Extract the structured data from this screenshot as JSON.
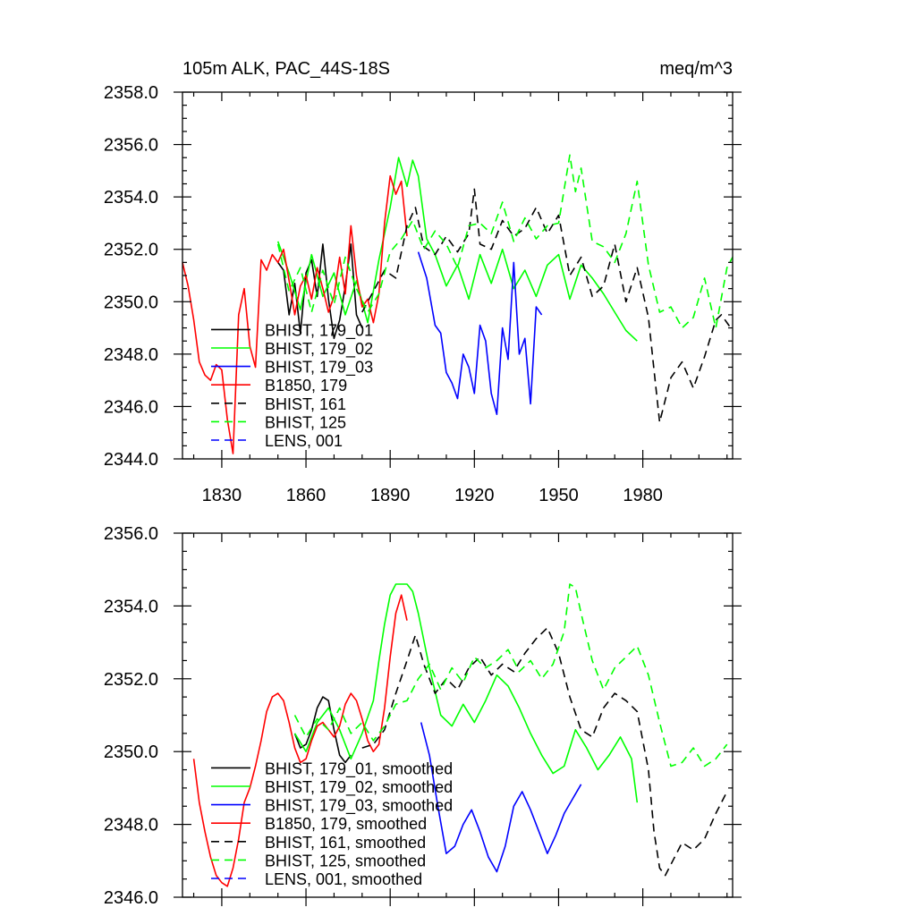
{
  "colors": {
    "black": "#000000",
    "green": "#00ff00",
    "blue": "#0000ff",
    "red": "#ff0000"
  },
  "chart_data": [
    {
      "type": "line",
      "title": "105m ALK, PAC_44S-18S",
      "units": "meq/m^3",
      "xlabel": "",
      "ylabel": "",
      "xlim": [
        1816,
        2012
      ],
      "ylim": [
        2344.0,
        2358.0
      ],
      "xticks": [
        1830,
        1860,
        1890,
        1920,
        1950,
        1980
      ],
      "yticks": [
        2344.0,
        2346.0,
        2348.0,
        2350.0,
        2352.0,
        2354.0,
        2356.0,
        2358.0
      ],
      "ytick_labels": [
        "2344.0",
        "2346.0",
        "2348.0",
        "2350.0",
        "2352.0",
        "2354.0",
        "2356.0",
        "2358.0"
      ],
      "legend_position": "bottom-left",
      "series": [
        {
          "name": "BHIST, 179_01",
          "color": "black",
          "dash": false,
          "x": [
            1850,
            1852,
            1854,
            1856,
            1858,
            1860,
            1862,
            1864,
            1866,
            1868,
            1870,
            1872,
            1874,
            1876,
            1878,
            1880
          ],
          "y": [
            2351.5,
            2351.2,
            2349.5,
            2350.7,
            2348.8,
            2351.1,
            2351.6,
            2350.2,
            2352.2,
            2350.1,
            2348.6,
            2349.3,
            2350.6,
            2352.2,
            2349.5,
            2349.0
          ]
        },
        {
          "name": "BHIST, 179_02",
          "color": "green",
          "dash": false,
          "x": [
            1850,
            1854,
            1858,
            1862,
            1866,
            1870,
            1874,
            1878,
            1882,
            1886,
            1890,
            1893,
            1896,
            1898,
            1900,
            1903,
            1906,
            1910,
            1914,
            1918,
            1922,
            1926,
            1930,
            1934,
            1938,
            1942,
            1946,
            1950,
            1954,
            1958,
            1962,
            1966,
            1970,
            1974,
            1978
          ],
          "y": [
            2352.3,
            2351.1,
            2349.7,
            2351.8,
            2350.2,
            2351.1,
            2349.5,
            2350.8,
            2349.2,
            2351.6,
            2353.6,
            2355.5,
            2354.4,
            2355.4,
            2354.8,
            2352.4,
            2351.8,
            2350.6,
            2351.4,
            2350.1,
            2351.8,
            2350.7,
            2352.0,
            2350.5,
            2351.2,
            2350.2,
            2351.4,
            2351.8,
            2350.1,
            2351.4,
            2350.9,
            2350.3,
            2349.6,
            2348.9,
            2348.5
          ]
        },
        {
          "name": "BHIST, 179_03",
          "color": "blue",
          "dash": false,
          "x": [
            1900,
            1903,
            1906,
            1908,
            1910,
            1912,
            1914,
            1916,
            1918,
            1920,
            1922,
            1924,
            1926,
            1928,
            1930,
            1932,
            1934,
            1936,
            1938,
            1940,
            1942,
            1944
          ],
          "y": [
            2351.9,
            2350.9,
            2349.1,
            2348.8,
            2347.3,
            2346.9,
            2346.3,
            2348.0,
            2347.5,
            2346.5,
            2349.1,
            2348.5,
            2346.5,
            2345.7,
            2349.0,
            2347.8,
            2351.5,
            2348.0,
            2348.6,
            2346.1,
            2349.8,
            2349.5
          ]
        },
        {
          "name": "B1850, 179",
          "color": "red",
          "dash": false,
          "x": [
            1816,
            1818,
            1820,
            1822,
            1824,
            1826,
            1828,
            1830,
            1832,
            1834,
            1836,
            1838,
            1840,
            1842,
            1844,
            1846,
            1848,
            1850,
            1852,
            1854,
            1856,
            1858,
            1860,
            1862,
            1864,
            1866,
            1868,
            1870,
            1872,
            1874,
            1876,
            1878,
            1880,
            1882,
            1884,
            1886,
            1888,
            1890,
            1892,
            1894,
            1896
          ],
          "y": [
            2351.5,
            2350.6,
            2349.3,
            2347.7,
            2347.2,
            2347.0,
            2347.6,
            2347.4,
            2345.5,
            2344.2,
            2349.5,
            2350.5,
            2348.3,
            2347.5,
            2351.6,
            2351.2,
            2351.8,
            2351.5,
            2352.0,
            2350.8,
            2349.5,
            2350.6,
            2351.0,
            2350.1,
            2351.3,
            2350.5,
            2349.6,
            2350.2,
            2351.7,
            2350.3,
            2352.9,
            2351.0,
            2349.8,
            2350.1,
            2349.2,
            2350.3,
            2353.0,
            2354.8,
            2354.1,
            2354.6,
            2352.5
          ]
        },
        {
          "name": "BHIST, 161",
          "color": "black",
          "dash": true,
          "x": [
            1880,
            1884,
            1888,
            1892,
            1896,
            1899,
            1902,
            1906,
            1910,
            1914,
            1918,
            1920,
            1922,
            1926,
            1930,
            1934,
            1938,
            1942,
            1946,
            1950,
            1954,
            1958,
            1962,
            1966,
            1970,
            1974,
            1978,
            1982,
            1984,
            1986,
            1990,
            1994,
            1998,
            2002,
            2006,
            2008,
            2012
          ],
          "y": [
            2349.6,
            2350.4,
            2351.2,
            2350.9,
            2352.9,
            2353.6,
            2352.1,
            2351.8,
            2352.5,
            2351.9,
            2352.6,
            2354.3,
            2352.2,
            2352.0,
            2353.1,
            2352.5,
            2352.8,
            2353.6,
            2352.6,
            2353.3,
            2351.0,
            2351.7,
            2350.2,
            2350.6,
            2352.2,
            2350.0,
            2351.3,
            2349.4,
            2347.4,
            2345.4,
            2347.1,
            2347.7,
            2346.7,
            2347.9,
            2349.3,
            2349.5,
            2348.9
          ]
        },
        {
          "name": "BHIST, 125",
          "color": "green",
          "dash": true,
          "x": [
            1850,
            1854,
            1858,
            1862,
            1866,
            1870,
            1874,
            1878,
            1882,
            1886,
            1890,
            1894,
            1898,
            1902,
            1906,
            1910,
            1914,
            1918,
            1922,
            1926,
            1930,
            1934,
            1938,
            1942,
            1946,
            1950,
            1954,
            1956,
            1958,
            1962,
            1966,
            1970,
            1974,
            1978,
            1982,
            1986,
            1990,
            1994,
            1998,
            2002,
            2006,
            2010,
            2012
          ],
          "y": [
            2352.2,
            2350.4,
            2351.3,
            2349.6,
            2351.2,
            2349.9,
            2351.7,
            2350.5,
            2349.6,
            2350.3,
            2351.9,
            2352.4,
            2353.1,
            2352.0,
            2352.7,
            2352.2,
            2351.3,
            2352.9,
            2353.0,
            2352.6,
            2353.8,
            2352.3,
            2353.2,
            2352.4,
            2352.9,
            2353.0,
            2355.6,
            2354.2,
            2355.1,
            2352.3,
            2352.1,
            2351.5,
            2352.6,
            2354.6,
            2351.4,
            2349.6,
            2349.8,
            2349.0,
            2349.4,
            2350.9,
            2349.0,
            2351.3,
            2351.7
          ]
        },
        {
          "name": "LENS, 001",
          "color": "blue",
          "dash": true,
          "x": [],
          "y": []
        }
      ]
    },
    {
      "type": "line",
      "title": "",
      "xlabel": "",
      "ylabel": "",
      "xlim": [
        1816,
        2012
      ],
      "ylim": [
        2346.0,
        2356.0
      ],
      "xticks": [
        1830,
        1860,
        1890,
        1920,
        1950,
        1980
      ],
      "yticks": [
        2346.0,
        2348.0,
        2350.0,
        2352.0,
        2354.0,
        2356.0
      ],
      "ytick_labels": [
        "2346.0",
        "2348.0",
        "2350.0",
        "2352.0",
        "2354.0",
        "2356.0"
      ],
      "legend_position": "bottom-left",
      "series": [
        {
          "name": "BHIST, 179_01, smoothed",
          "color": "black",
          "dash": false,
          "x": [
            1856,
            1858,
            1860,
            1862,
            1864,
            1866,
            1868,
            1870,
            1872,
            1874,
            1876
          ],
          "y": [
            2350.5,
            2350.1,
            2350.2,
            2350.6,
            2351.2,
            2351.5,
            2351.4,
            2350.6,
            2349.9,
            2349.7,
            2349.9
          ]
        },
        {
          "name": "BHIST, 179_02, smoothed",
          "color": "green",
          "dash": false,
          "x": [
            1856,
            1860,
            1864,
            1868,
            1872,
            1876,
            1880,
            1884,
            1886,
            1888,
            1890,
            1892,
            1894,
            1896,
            1898,
            1900,
            1904,
            1908,
            1912,
            1916,
            1920,
            1924,
            1928,
            1932,
            1936,
            1940,
            1944,
            1948,
            1952,
            1956,
            1960,
            1964,
            1968,
            1972,
            1976,
            1978
          ],
          "y": [
            2350.5,
            2350.0,
            2350.8,
            2351.2,
            2350.6,
            2349.8,
            2350.5,
            2351.4,
            2352.5,
            2353.5,
            2354.3,
            2354.6,
            2354.6,
            2354.6,
            2354.4,
            2353.8,
            2352.3,
            2351.0,
            2350.7,
            2351.3,
            2350.8,
            2351.4,
            2352.1,
            2351.8,
            2351.2,
            2350.5,
            2349.9,
            2349.4,
            2349.6,
            2350.6,
            2350.1,
            2349.5,
            2349.9,
            2350.4,
            2349.8,
            2348.6
          ]
        },
        {
          "name": "BHIST, 179_03, smoothed",
          "color": "blue",
          "dash": false,
          "x": [
            1901,
            1904,
            1907,
            1910,
            1913,
            1916,
            1919,
            1922,
            1925,
            1928,
            1931,
            1934,
            1937,
            1940,
            1943,
            1946,
            1949,
            1952,
            1955,
            1958
          ],
          "y": [
            2350.8,
            2349.9,
            2348.5,
            2347.2,
            2347.4,
            2348.0,
            2348.4,
            2347.8,
            2347.1,
            2346.7,
            2347.4,
            2348.5,
            2348.9,
            2348.4,
            2347.8,
            2347.2,
            2347.7,
            2348.3,
            2348.7,
            2349.1
          ]
        },
        {
          "name": "B1850, 179, smoothed",
          "color": "red",
          "dash": false,
          "x": [
            1820,
            1822,
            1824,
            1826,
            1828,
            1830,
            1832,
            1834,
            1836,
            1838,
            1840,
            1842,
            1844,
            1846,
            1848,
            1850,
            1852,
            1854,
            1856,
            1858,
            1860,
            1862,
            1864,
            1866,
            1868,
            1870,
            1872,
            1874,
            1876,
            1878,
            1880,
            1882,
            1884,
            1886,
            1888,
            1890,
            1892,
            1894,
            1896
          ],
          "y": [
            2349.8,
            2348.6,
            2347.8,
            2347.1,
            2346.6,
            2346.4,
            2346.3,
            2346.8,
            2347.6,
            2348.6,
            2349.0,
            2349.6,
            2350.3,
            2351.1,
            2351.5,
            2351.6,
            2351.4,
            2350.8,
            2350.1,
            2349.7,
            2349.8,
            2350.3,
            2350.7,
            2350.8,
            2350.6,
            2350.4,
            2350.7,
            2351.3,
            2351.6,
            2351.4,
            2350.9,
            2350.3,
            2350.0,
            2350.2,
            2351.2,
            2352.6,
            2353.8,
            2354.3,
            2353.6
          ]
        },
        {
          "name": "BHIST, 161, smoothed",
          "color": "black",
          "dash": true,
          "x": [
            1880,
            1884,
            1888,
            1892,
            1896,
            1899,
            1902,
            1906,
            1910,
            1914,
            1918,
            1922,
            1926,
            1930,
            1934,
            1938,
            1942,
            1946,
            1950,
            1954,
            1958,
            1962,
            1966,
            1970,
            1974,
            1978,
            1982,
            1984,
            1986,
            1988,
            1990,
            1994,
            1998,
            2002,
            2006,
            2010
          ],
          "y": [
            2350.1,
            2350.2,
            2350.6,
            2351.6,
            2352.5,
            2353.2,
            2352.4,
            2351.6,
            2352.0,
            2351.7,
            2352.3,
            2352.6,
            2352.1,
            2352.4,
            2352.2,
            2352.7,
            2353.1,
            2353.4,
            2352.7,
            2351.5,
            2350.6,
            2350.4,
            2351.2,
            2351.6,
            2351.4,
            2351.1,
            2349.5,
            2347.8,
            2346.8,
            2346.6,
            2346.9,
            2347.5,
            2347.3,
            2347.6,
            2348.3,
            2348.9
          ]
        },
        {
          "name": "BHIST, 125, smoothed",
          "color": "green",
          "dash": true,
          "x": [
            1856,
            1860,
            1864,
            1868,
            1872,
            1876,
            1880,
            1884,
            1888,
            1892,
            1896,
            1900,
            1904,
            1908,
            1912,
            1916,
            1920,
            1924,
            1928,
            1932,
            1936,
            1940,
            1944,
            1948,
            1952,
            1954,
            1956,
            1958,
            1962,
            1966,
            1970,
            1974,
            1978,
            1982,
            1986,
            1990,
            1994,
            1998,
            2002,
            2006,
            2010
          ],
          "y": [
            2351.0,
            2350.4,
            2350.9,
            2350.6,
            2351.2,
            2350.5,
            2350.8,
            2350.3,
            2350.7,
            2351.3,
            2351.4,
            2352.0,
            2352.4,
            2351.7,
            2352.3,
            2351.9,
            2352.6,
            2352.3,
            2352.5,
            2352.8,
            2352.2,
            2352.5,
            2352.0,
            2352.4,
            2353.3,
            2354.6,
            2354.5,
            2353.8,
            2352.5,
            2351.7,
            2352.3,
            2352.6,
            2352.9,
            2352.1,
            2350.8,
            2349.6,
            2349.7,
            2350.1,
            2349.6,
            2349.8,
            2350.2
          ]
        },
        {
          "name": "LENS, 001, smoothed",
          "color": "blue",
          "dash": true,
          "x": [],
          "y": []
        }
      ]
    }
  ]
}
